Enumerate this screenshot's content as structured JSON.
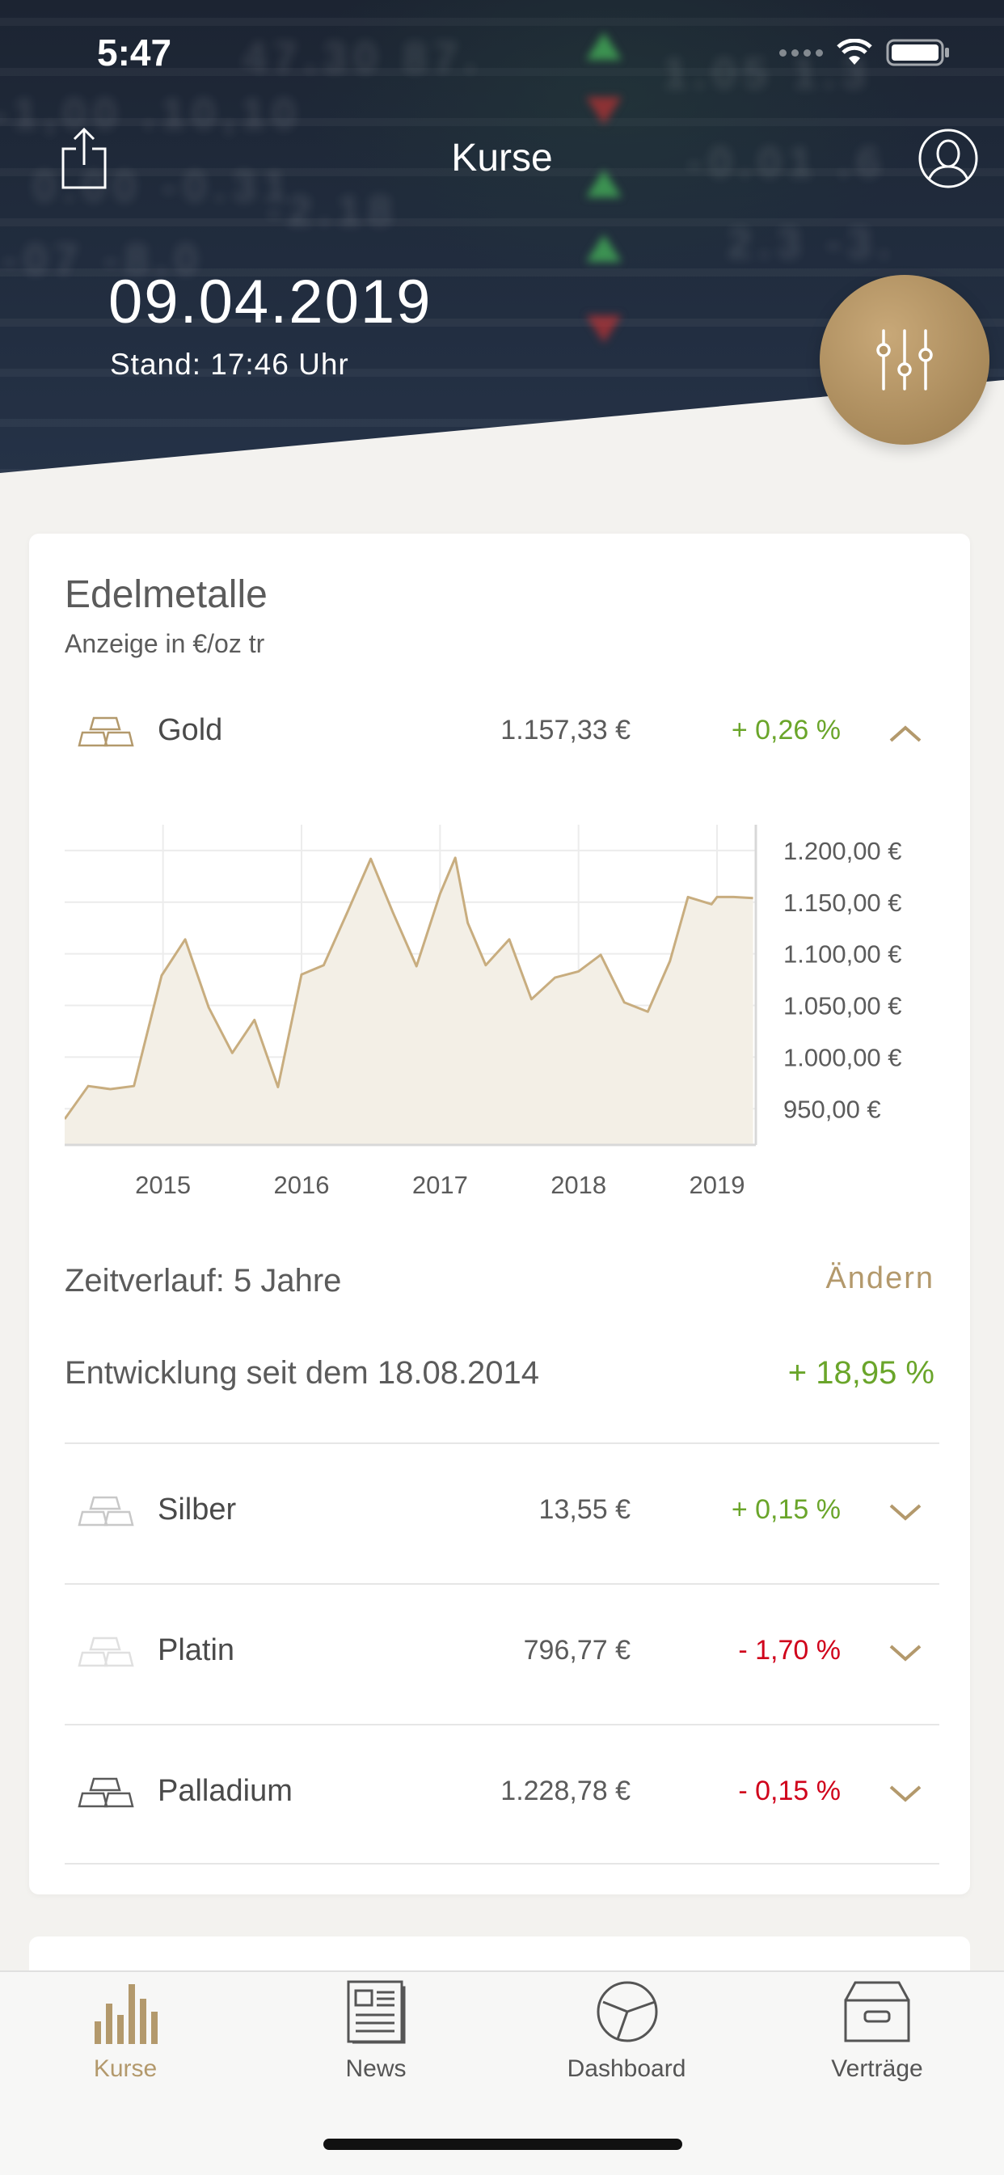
{
  "status_bar": {
    "time": "5:47"
  },
  "header": {
    "title": "Kurse",
    "date": "09.04.2019",
    "stand": "Stand: 17:46 Uhr"
  },
  "card": {
    "title": "Edelmetalle",
    "subtitle": "Anzeige in €/oz tr"
  },
  "metals": [
    {
      "name": "Gold",
      "price": "1.157,33 €",
      "change": "+ 0,26 %",
      "trend": "up",
      "expanded": true
    },
    {
      "name": "Silber",
      "price": "13,55 €",
      "change": "+ 0,15 %",
      "trend": "up",
      "expanded": false
    },
    {
      "name": "Platin",
      "price": "796,77 €",
      "change": "- 1,70 %",
      "trend": "down",
      "expanded": false
    },
    {
      "name": "Palladium",
      "price": "1.228,78 €",
      "change": "- 0,15 %",
      "trend": "down",
      "expanded": false
    }
  ],
  "chart_data": {
    "type": "area",
    "title": "",
    "xlabel": "",
    "ylabel": "",
    "x_ticks": [
      "2015",
      "2016",
      "2017",
      "2018",
      "2019"
    ],
    "y_ticks": [
      "1.200,00 €",
      "1.150,00 €",
      "1.100,00 €",
      "1.050,00 €",
      "1.000,00 €",
      "950,00 €"
    ],
    "y_tick_values": [
      1200,
      1150,
      1100,
      1050,
      1000,
      950
    ],
    "ylim": [
      915,
      1225
    ],
    "xlim": [
      2014.29,
      2019.28
    ],
    "grid": true,
    "color": "#c8ad7f",
    "fill": "#f3efe6",
    "x": [
      2014.29,
      2014.46,
      2014.62,
      2014.79,
      2014.99,
      2015.16,
      2015.33,
      2015.5,
      2015.66,
      2015.83,
      2016.0,
      2016.16,
      2016.33,
      2016.5,
      2016.66,
      2016.83,
      2017.0,
      2017.11,
      2017.2,
      2017.33,
      2017.5,
      2017.66,
      2017.83,
      2018.0,
      2018.16,
      2018.33,
      2018.5,
      2018.66,
      2018.79,
      2018.96,
      2019.0,
      2019.12,
      2019.26
    ],
    "y": [
      940,
      972,
      969,
      972,
      1079,
      1114,
      1048,
      1004,
      1036,
      971,
      1080,
      1089,
      1140,
      1192,
      1140,
      1088,
      1158,
      1193,
      1130,
      1089,
      1114,
      1056,
      1077,
      1083,
      1099,
      1053,
      1044,
      1093,
      1155,
      1148,
      1155,
      1155,
      1154
    ],
    "interp_note": ""
  },
  "range": {
    "label": "Zeitverlauf: 5 Jahre",
    "change_label": "Ändern",
    "since_label": "Entwicklung seit dem 18.08.2014",
    "since_value": "+ 18,95 %"
  },
  "tabbar": {
    "items": [
      {
        "label": "Kurse",
        "active": true
      },
      {
        "label": "News",
        "active": false
      },
      {
        "label": "Dashboard",
        "active": false
      },
      {
        "label": "Verträge",
        "active": false
      }
    ]
  },
  "colors": {
    "gold": "#b3996c",
    "green": "#6aa52a",
    "red": "#d0021b"
  }
}
